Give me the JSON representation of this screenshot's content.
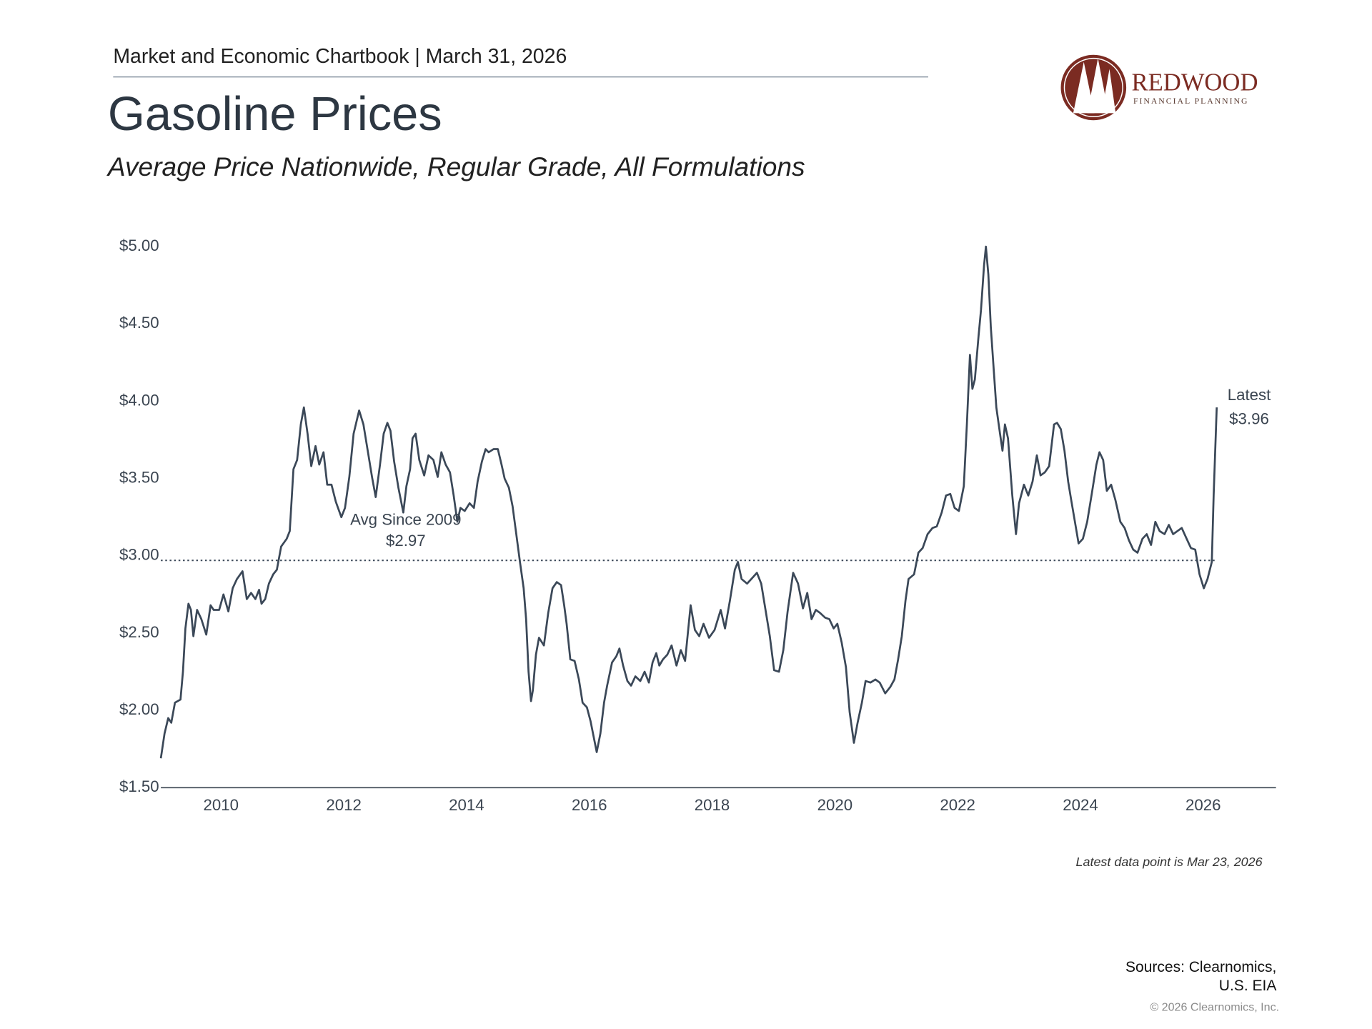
{
  "header": {
    "chartbook": "Market and Economic Chartbook | March 31, 2026"
  },
  "logo": {
    "name": "REDWOOD",
    "tagline": "FINANCIAL PLANNING"
  },
  "chart_data": {
    "type": "line",
    "title": "Gasoline Prices",
    "subtitle": "Average Price Nationwide, Regular Grade, All Formulations",
    "color": "#3b4858",
    "xlim": [
      2009,
      2027.2
    ],
    "xticks": [
      2010,
      2012,
      2014,
      2016,
      2018,
      2020,
      2022,
      2024,
      2026
    ],
    "ylim": [
      1.5,
      5.0
    ],
    "yticks": [
      {
        "value": 1.5,
        "label": "$1.50"
      },
      {
        "value": 2.0,
        "label": "$2.00"
      },
      {
        "value": 2.5,
        "label": "$2.50"
      },
      {
        "value": 3.0,
        "label": "$3.00"
      },
      {
        "value": 3.5,
        "label": "$3.50"
      },
      {
        "value": 4.0,
        "label": "$4.00"
      },
      {
        "value": 4.5,
        "label": "$4.50"
      },
      {
        "value": 5.0,
        "label": "$5.00"
      }
    ],
    "grid": false,
    "reference_line": {
      "label": "Avg Since 2009",
      "value": 2.97,
      "value_label": "$2.97"
    },
    "latest": {
      "label": "Latest",
      "value": 3.96,
      "value_label": "$3.96"
    },
    "note": "Latest data point is Mar 23, 2026",
    "x": [
      2009.02,
      2009.08,
      2009.14,
      2009.19,
      2009.25,
      2009.34,
      2009.38,
      2009.42,
      2009.47,
      2009.51,
      2009.55,
      2009.61,
      2009.68,
      2009.76,
      2009.83,
      2009.88,
      2009.97,
      2010.04,
      2010.12,
      2010.19,
      2010.26,
      2010.35,
      2010.42,
      2010.49,
      2010.56,
      2010.62,
      2010.66,
      2010.72,
      2010.78,
      2010.85,
      2010.91,
      2010.98,
      2011.07,
      2011.12,
      2011.18,
      2011.24,
      2011.3,
      2011.35,
      2011.41,
      2011.47,
      2011.54,
      2011.6,
      2011.67,
      2011.73,
      2011.8,
      2011.87,
      2011.96,
      2012.02,
      2012.09,
      2012.16,
      2012.25,
      2012.32,
      2012.39,
      2012.46,
      2012.52,
      2012.59,
      2012.65,
      2012.71,
      2012.76,
      2012.82,
      2012.89,
      2012.97,
      2013.02,
      2013.08,
      2013.12,
      2013.17,
      2013.23,
      2013.31,
      2013.38,
      2013.46,
      2013.53,
      2013.59,
      2013.66,
      2013.73,
      2013.79,
      2013.85,
      2013.9,
      2013.97,
      2014.05,
      2014.12,
      2014.18,
      2014.25,
      2014.31,
      2014.36,
      2014.44,
      2014.51,
      2014.57,
      2014.62,
      2014.69,
      2014.75,
      2014.81,
      2014.87,
      2014.93,
      2014.97,
      2015.01,
      2015.05,
      2015.08,
      2015.13,
      2015.18,
      2015.26,
      2015.33,
      2015.4,
      2015.47,
      2015.54,
      2015.59,
      2015.63,
      2015.69,
      2015.76,
      2015.83,
      2015.89,
      2015.96,
      2016.02,
      2016.06,
      2016.12,
      2016.18,
      2016.24,
      2016.29,
      2016.37,
      2016.44,
      2016.49,
      2016.55,
      2016.62,
      2016.68,
      2016.75,
      2016.83,
      2016.9,
      2016.97,
      2017.03,
      2017.09,
      2017.14,
      2017.2,
      2017.27,
      2017.34,
      2017.42,
      2017.49,
      2017.56,
      2017.65,
      2017.72,
      2017.79,
      2017.86,
      2017.95,
      2018.04,
      2018.14,
      2018.21,
      2018.29,
      2018.37,
      2018.42,
      2018.48,
      2018.57,
      2018.64,
      2018.73,
      2018.8,
      2018.87,
      2018.94,
      2019.01,
      2019.09,
      2019.16,
      2019.23,
      2019.32,
      2019.4,
      2019.48,
      2019.55,
      2019.62,
      2019.69,
      2019.76,
      2019.84,
      2019.91,
      2019.98,
      2020.04,
      2020.11,
      2020.18,
      2020.24,
      2020.31,
      2020.37,
      2020.44,
      2020.5,
      2020.58,
      2020.66,
      2020.73,
      2020.82,
      2020.9,
      2020.97,
      2021.03,
      2021.09,
      2021.15,
      2021.2,
      2021.29,
      2021.36,
      2021.43,
      2021.51,
      2021.59,
      2021.66,
      2021.74,
      2021.81,
      2021.88,
      2021.95,
      2022.02,
      2022.1,
      2022.15,
      2022.2,
      2022.24,
      2022.28,
      2022.34,
      2022.38,
      2022.43,
      2022.46,
      2022.5,
      2022.54,
      2022.59,
      2022.63,
      2022.69,
      2022.73,
      2022.77,
      2022.82,
      2022.89,
      2022.95,
      2023.0,
      2023.08,
      2023.15,
      2023.22,
      2023.29,
      2023.35,
      2023.42,
      2023.49,
      2023.57,
      2023.62,
      2023.68,
      2023.74,
      2023.8,
      2023.85,
      2023.91,
      2023.97,
      2024.04,
      2024.11,
      2024.18,
      2024.26,
      2024.31,
      2024.37,
      2024.43,
      2024.5,
      2024.57,
      2024.65,
      2024.72,
      2024.79,
      2024.86,
      2024.93,
      2025.01,
      2025.08,
      2025.15,
      2025.22,
      2025.29,
      2025.37,
      2025.44,
      2025.51,
      2025.58,
      2025.65,
      2025.73,
      2025.8,
      2025.87,
      2025.94,
      2026.01,
      2026.07,
      2026.14,
      2026.17,
      2026.22
    ],
    "values": [
      1.69,
      1.85,
      1.95,
      1.92,
      2.05,
      2.07,
      2.25,
      2.53,
      2.69,
      2.65,
      2.48,
      2.65,
      2.59,
      2.49,
      2.68,
      2.65,
      2.65,
      2.75,
      2.64,
      2.79,
      2.85,
      2.9,
      2.72,
      2.76,
      2.72,
      2.78,
      2.69,
      2.72,
      2.82,
      2.88,
      2.91,
      3.06,
      3.11,
      3.16,
      3.56,
      3.62,
      3.85,
      3.96,
      3.79,
      3.58,
      3.71,
      3.59,
      3.67,
      3.46,
      3.46,
      3.35,
      3.25,
      3.31,
      3.51,
      3.79,
      3.94,
      3.85,
      3.68,
      3.51,
      3.38,
      3.59,
      3.79,
      3.86,
      3.81,
      3.61,
      3.44,
      3.28,
      3.45,
      3.56,
      3.76,
      3.79,
      3.62,
      3.52,
      3.65,
      3.62,
      3.51,
      3.67,
      3.59,
      3.54,
      3.39,
      3.22,
      3.31,
      3.29,
      3.34,
      3.31,
      3.48,
      3.61,
      3.69,
      3.67,
      3.69,
      3.69,
      3.59,
      3.5,
      3.44,
      3.32,
      3.14,
      2.96,
      2.79,
      2.59,
      2.25,
      2.06,
      2.13,
      2.36,
      2.47,
      2.42,
      2.63,
      2.79,
      2.83,
      2.81,
      2.68,
      2.56,
      2.33,
      2.32,
      2.2,
      2.05,
      2.02,
      1.93,
      1.85,
      1.73,
      1.85,
      2.05,
      2.16,
      2.31,
      2.35,
      2.4,
      2.29,
      2.19,
      2.16,
      2.22,
      2.19,
      2.25,
      2.18,
      2.31,
      2.37,
      2.29,
      2.33,
      2.36,
      2.42,
      2.29,
      2.39,
      2.32,
      2.68,
      2.52,
      2.48,
      2.56,
      2.47,
      2.52,
      2.65,
      2.53,
      2.71,
      2.91,
      2.96,
      2.85,
      2.82,
      2.85,
      2.89,
      2.82,
      2.65,
      2.48,
      2.26,
      2.25,
      2.39,
      2.64,
      2.89,
      2.82,
      2.66,
      2.76,
      2.59,
      2.65,
      2.63,
      2.6,
      2.59,
      2.53,
      2.56,
      2.44,
      2.28,
      1.99,
      1.79,
      1.92,
      2.05,
      2.19,
      2.18,
      2.2,
      2.18,
      2.11,
      2.15,
      2.2,
      2.33,
      2.48,
      2.71,
      2.85,
      2.88,
      3.02,
      3.05,
      3.14,
      3.18,
      3.19,
      3.28,
      3.39,
      3.4,
      3.31,
      3.29,
      3.45,
      3.85,
      4.3,
      4.08,
      4.14,
      4.42,
      4.59,
      4.88,
      5.0,
      4.82,
      4.48,
      4.19,
      3.96,
      3.79,
      3.68,
      3.85,
      3.76,
      3.39,
      3.14,
      3.34,
      3.46,
      3.39,
      3.48,
      3.65,
      3.52,
      3.54,
      3.58,
      3.85,
      3.86,
      3.82,
      3.68,
      3.48,
      3.36,
      3.22,
      3.08,
      3.11,
      3.22,
      3.39,
      3.59,
      3.67,
      3.62,
      3.42,
      3.46,
      3.36,
      3.22,
      3.18,
      3.1,
      3.04,
      3.02,
      3.11,
      3.14,
      3.07,
      3.22,
      3.16,
      3.14,
      3.2,
      3.14,
      3.16,
      3.18,
      3.11,
      3.05,
      3.04,
      2.88,
      2.79,
      2.85,
      2.96,
      3.39,
      3.96
    ]
  },
  "footer": {
    "sources": [
      "Sources: Clearnomics,",
      "U.S. EIA"
    ],
    "copyright": "© 2026 Clearnomics, Inc."
  }
}
